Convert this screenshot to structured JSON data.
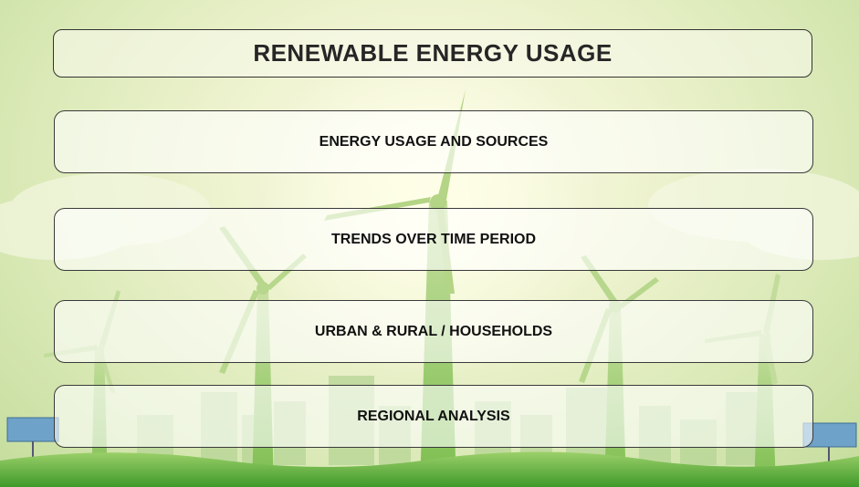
{
  "title": "RENEWABLE ENERGY USAGE",
  "nav": [
    {
      "label": "ENERGY USAGE AND SOURCES"
    },
    {
      "label": "TRENDS OVER TIME PERIOD"
    },
    {
      "label": "URBAN & RURAL / HOUSEHOLDS"
    },
    {
      "label": "REGIONAL ANALYSIS"
    }
  ],
  "colors": {
    "sky": "#eef3cf",
    "grass": "#5fae3a",
    "turbine": "#a7cf7a"
  }
}
